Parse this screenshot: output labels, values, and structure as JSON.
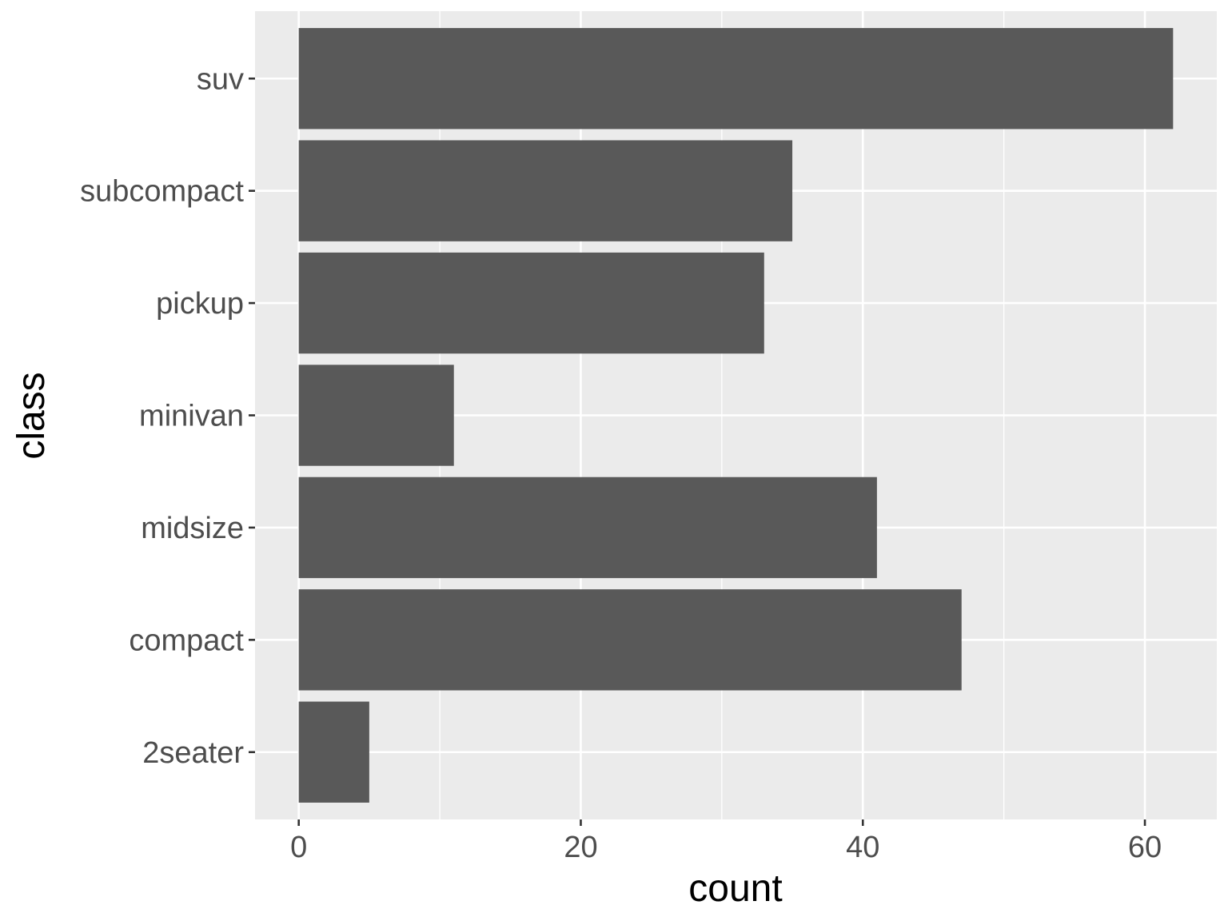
{
  "chart_data": {
    "type": "bar",
    "orientation": "horizontal",
    "categories": [
      "2seater",
      "compact",
      "midsize",
      "minivan",
      "pickup",
      "subcompact",
      "suv"
    ],
    "values": [
      5,
      47,
      41,
      11,
      33,
      35,
      62
    ],
    "xlabel": "count",
    "ylabel": "class",
    "xlim": [
      -3.1,
      65.1
    ],
    "xticks": [
      0,
      20,
      40,
      60
    ],
    "xtick_labels": [
      "0",
      "20",
      "40",
      "60"
    ],
    "grid": true,
    "legend": "none",
    "colors": {
      "bar": "#595959",
      "panel": "#ebebeb",
      "grid": "#ffffff",
      "tick_text": "#4d4d4d",
      "tick_mark": "#333333",
      "title_text": "#000000"
    }
  }
}
